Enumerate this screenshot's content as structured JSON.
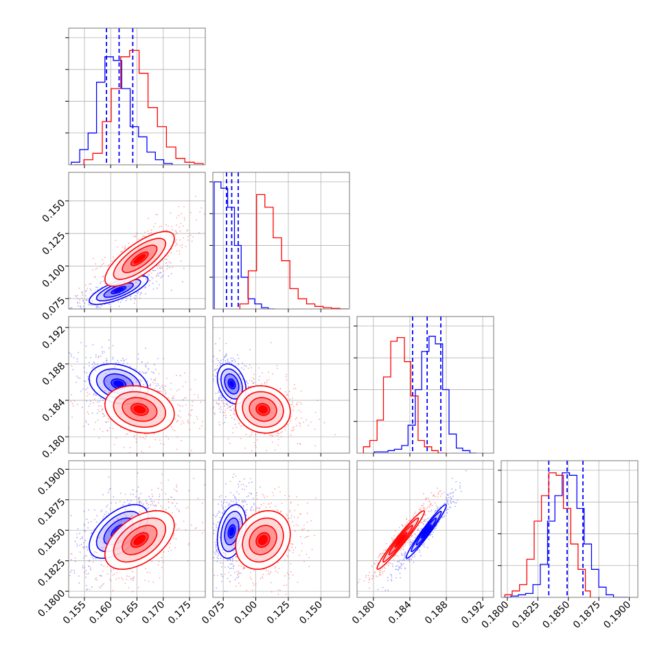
{
  "chart_data": {
    "type": "corner",
    "params": [
      {
        "range": [
          0.152,
          0.178
        ],
        "ticks": [
          "0.155",
          "0.160",
          "0.165",
          "0.170",
          "0.175"
        ],
        "tick_values": [
          0.155,
          0.16,
          0.165,
          0.17,
          0.175
        ]
      },
      {
        "range": [
          0.067,
          0.172
        ],
        "ticks": [
          "0.075",
          "0.100",
          "0.125",
          "0.150"
        ],
        "tick_values": [
          0.075,
          0.1,
          0.125,
          0.15
        ]
      },
      {
        "range": [
          0.1782,
          0.1932
        ],
        "ticks": [
          "0.180",
          "0.184",
          "0.188",
          "0.192"
        ],
        "tick_values": [
          0.18,
          0.184,
          0.188,
          0.192
        ]
      },
      {
        "range": [
          0.1795,
          0.1907
        ],
        "ticks": [
          "0.1800",
          "0.1825",
          "0.1850",
          "0.1875",
          "0.1900"
        ],
        "tick_values": [
          0.18,
          0.1825,
          0.185,
          0.1875,
          0.19
        ]
      }
    ],
    "series": [
      {
        "color": "#0000ff",
        "hist_edges": [
          [
            0.1525,
            0.1541,
            0.1557,
            0.1573,
            0.1589,
            0.1605,
            0.1621,
            0.1637,
            0.1653,
            0.1669,
            0.1685,
            0.1701,
            0.1717
          ],
          [
            0.068,
            0.0732,
            0.0784,
            0.0836,
            0.0888,
            0.094,
            0.0992,
            0.1044,
            0.1096,
            0.1148
          ],
          [
            0.1801,
            0.1808,
            0.1816,
            0.1823,
            0.1831,
            0.1838,
            0.1846,
            0.1853,
            0.1861,
            0.1868,
            0.1876,
            0.1883,
            0.1891,
            0.1898,
            0.1906,
            0.1913
          ],
          [
            0.1797,
            0.1803,
            0.1809,
            0.1815,
            0.1821,
            0.1827,
            0.1833,
            0.1839,
            0.1845,
            0.1851,
            0.1857,
            0.1863,
            0.1869,
            0.1875,
            0.1881,
            0.1887,
            0.1893,
            0.1899
          ]
        ],
        "hist_counts": [
          [
            0.02,
            0.12,
            0.25,
            0.65,
            0.85,
            0.82,
            0.6,
            0.3,
            0.22,
            0.1,
            0.04,
            0.01
          ],
          [
            1.0,
            0.95,
            0.8,
            0.5,
            0.25,
            0.08,
            0.04,
            0.01,
            0.0
          ],
          [
            0.01,
            0.01,
            0.02,
            0.03,
            0.06,
            0.22,
            0.5,
            0.8,
            0.92,
            0.86,
            0.5,
            0.15,
            0.04,
            0.02,
            0.0
          ],
          [
            0.0,
            0.01,
            0.02,
            0.03,
            0.1,
            0.26,
            0.6,
            0.8,
            0.98,
            0.96,
            0.7,
            0.42,
            0.22,
            0.08,
            0.02,
            0.0,
            0.0
          ]
        ],
        "quantiles": [
          [
            0.1592,
            0.1616,
            0.1642
          ],
          [
            0.0775,
            0.0815,
            0.0865
          ],
          [
            0.1843,
            0.1859,
            0.1874
          ],
          [
            0.1834,
            0.1849,
            0.1862
          ]
        ],
        "mean": [
          0.1615,
          0.0815,
          0.1858,
          0.1849
        ],
        "sd": [
          0.0028,
          0.0055,
          0.0011,
          0.0011
        ],
        "corr": [
          [
            1.0,
            0.75,
            -0.25,
            0.55
          ],
          [
            0.75,
            1.0,
            -0.3,
            0.3
          ],
          [
            -0.25,
            -0.3,
            1.0,
            0.97
          ],
          [
            0.55,
            0.3,
            0.97,
            1.0
          ]
        ]
      },
      {
        "color": "#ff0000",
        "hist_edges": [
          [
            0.1531,
            0.1549,
            0.1566,
            0.1584,
            0.1601,
            0.1619,
            0.1636,
            0.1654,
            0.1671,
            0.1689,
            0.1706,
            0.1724,
            0.1741,
            0.1759,
            0.1776
          ],
          [
            0.0878,
            0.0942,
            0.1006,
            0.107,
            0.1134,
            0.1198,
            0.1262,
            0.1326,
            0.139,
            0.1454,
            0.1518,
            0.1582,
            0.1646,
            0.171
          ],
          [
            0.1789,
            0.1796,
            0.1804,
            0.1811,
            0.1819,
            0.1826,
            0.1834,
            0.1841,
            0.1849,
            0.1856,
            0.1864,
            0.1871,
            0.1879
          ],
          [
            0.1798,
            0.1804,
            0.181,
            0.1816,
            0.1822,
            0.1828,
            0.1834,
            0.184,
            0.1846,
            0.1852,
            0.1858,
            0.1864,
            0.1868
          ]
        ],
        "hist_counts": [
          [
            0.0,
            0.04,
            0.09,
            0.34,
            0.6,
            0.85,
            0.9,
            0.72,
            0.45,
            0.3,
            0.14,
            0.05,
            0.02,
            0.01
          ],
          [
            0.04,
            0.3,
            0.9,
            0.8,
            0.56,
            0.38,
            0.16,
            0.08,
            0.04,
            0.02,
            0.01,
            0.005,
            0.0
          ],
          [
            0.05,
            0.1,
            0.26,
            0.6,
            0.88,
            0.91,
            0.72,
            0.45,
            0.1,
            0.05,
            0.02,
            0.0
          ],
          [
            0.02,
            0.05,
            0.1,
            0.3,
            0.6,
            0.8,
            0.98,
            0.96,
            0.7,
            0.42,
            0.22,
            0.05
          ]
        ],
        "quantiles": null,
        "mean": [
          0.1655,
          0.1055,
          0.183,
          0.1842
        ],
        "sd": [
          0.0033,
          0.0105,
          0.0013,
          0.0012
        ],
        "corr": [
          [
            1.0,
            0.75,
            -0.2,
            0.5
          ],
          [
            0.75,
            1.0,
            -0.1,
            0.2
          ],
          [
            -0.2,
            -0.1,
            1.0,
            0.97
          ],
          [
            0.5,
            0.2,
            0.97,
            1.0
          ]
        ]
      }
    ],
    "contour_levels": [
      0.5,
      1.0,
      1.5,
      2.0
    ],
    "grid": true,
    "title": "",
    "xlabel": "",
    "ylabel": ""
  }
}
